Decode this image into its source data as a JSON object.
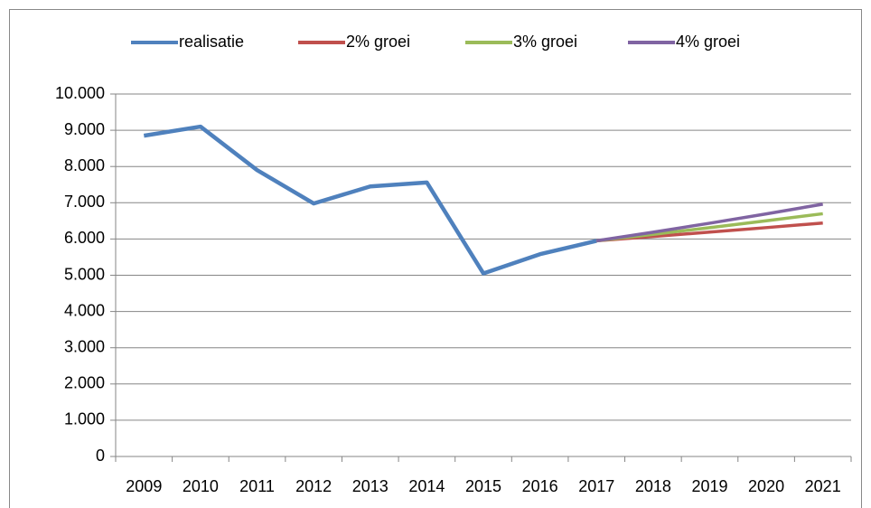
{
  "chart_data": {
    "type": "line",
    "categories": [
      "2009",
      "2010",
      "2011",
      "2012",
      "2013",
      "2014",
      "2015",
      "2016",
      "2017",
      "2018",
      "2019",
      "2020",
      "2021"
    ],
    "series": [
      {
        "name": "realisatie",
        "color": "#4f81bd",
        "values": [
          8850,
          9100,
          7900,
          6980,
          7450,
          7560,
          5050,
          5580,
          5950,
          null,
          null,
          null,
          null
        ]
      },
      {
        "name": "2% groei",
        "color": "#c0504d",
        "values": [
          null,
          null,
          null,
          null,
          null,
          null,
          null,
          null,
          5950,
          6069,
          6190,
          6314,
          6441
        ]
      },
      {
        "name": "3% groei",
        "color": "#9bbb59",
        "values": [
          null,
          null,
          null,
          null,
          null,
          null,
          null,
          null,
          5950,
          6129,
          6312,
          6502,
          6697
        ]
      },
      {
        "name": "4% groei",
        "color": "#8064a2",
        "values": [
          null,
          null,
          null,
          null,
          null,
          null,
          null,
          null,
          5950,
          6188,
          6436,
          6693,
          6961
        ]
      }
    ],
    "ylim": [
      0,
      10000
    ],
    "yticks": [
      0,
      {
        "value": 1000,
        "label": "1.000"
      },
      {
        "value": 2000,
        "label": "2.000"
      },
      {
        "value": 3000,
        "label": "3.000"
      },
      {
        "value": 4000,
        "label": "4.000"
      },
      {
        "value": 5000,
        "label": "5.000"
      },
      {
        "value": 6000,
        "label": "6.000"
      },
      {
        "value": 7000,
        "label": "7.000"
      },
      {
        "value": 8000,
        "label": "8.000"
      },
      {
        "value": 9000,
        "label": "9.000"
      },
      {
        "value": 10000,
        "label": "10.000"
      }
    ],
    "grid": true,
    "legend": "top"
  }
}
